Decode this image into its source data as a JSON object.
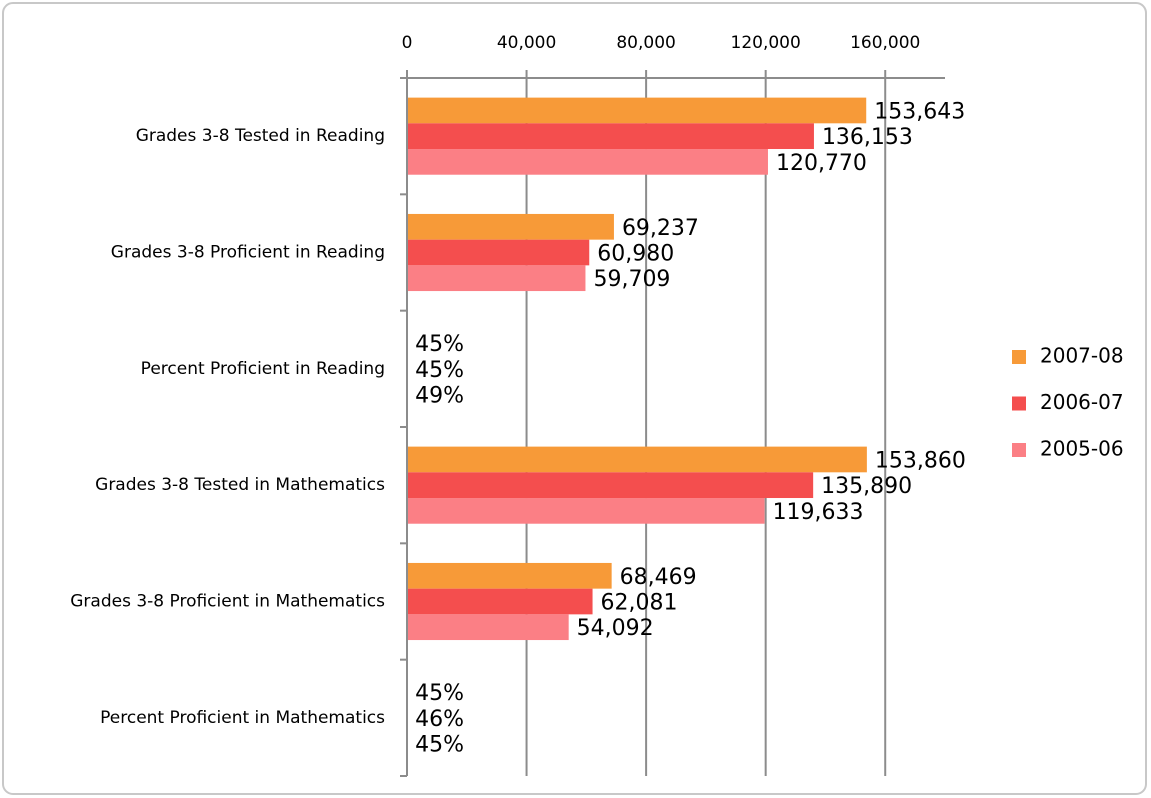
{
  "chart_data": {
    "type": "bar",
    "orientation": "horizontal",
    "categories": [
      "Grades 3-8 Tested in Reading",
      "Grades 3-8 Proficient in Reading",
      "Percent Proficient in Reading",
      "Grades 3-8 Tested in Mathematics",
      "Grades 3-8 Proficient in Mathematics",
      "Percent Proficient in Mathematics"
    ],
    "series": [
      {
        "name": "2007-08",
        "color": "#f79a38",
        "values": [
          153643,
          69237,
          45,
          153860,
          68469,
          45
        ],
        "value_labels": [
          "153,643",
          "69,237",
          "45%",
          "153,860",
          "68,469",
          "45%"
        ]
      },
      {
        "name": "2006-07",
        "color": "#f44e4e",
        "values": [
          136153,
          60980,
          45,
          135890,
          62081,
          46
        ],
        "value_labels": [
          "136,153",
          "60,980",
          "45%",
          "135,890",
          "62,081",
          "46%"
        ]
      },
      {
        "name": "2005-06",
        "color": "#fb7f85",
        "values": [
          120770,
          59709,
          49,
          119633,
          54092,
          45
        ],
        "value_labels": [
          "120,770",
          "59,709",
          "49%",
          "119,633",
          "54,092",
          "45%"
        ]
      }
    ],
    "xlim": [
      0,
      180000
    ],
    "xticks": [
      0,
      {
        "value": 40000,
        "label": "40,000"
      },
      {
        "value": 80000,
        "label": "80,000"
      },
      {
        "value": 120000,
        "label": "120,000"
      },
      {
        "value": 160000,
        "label": "160,000"
      }
    ],
    "grid": true,
    "legend": "right"
  }
}
